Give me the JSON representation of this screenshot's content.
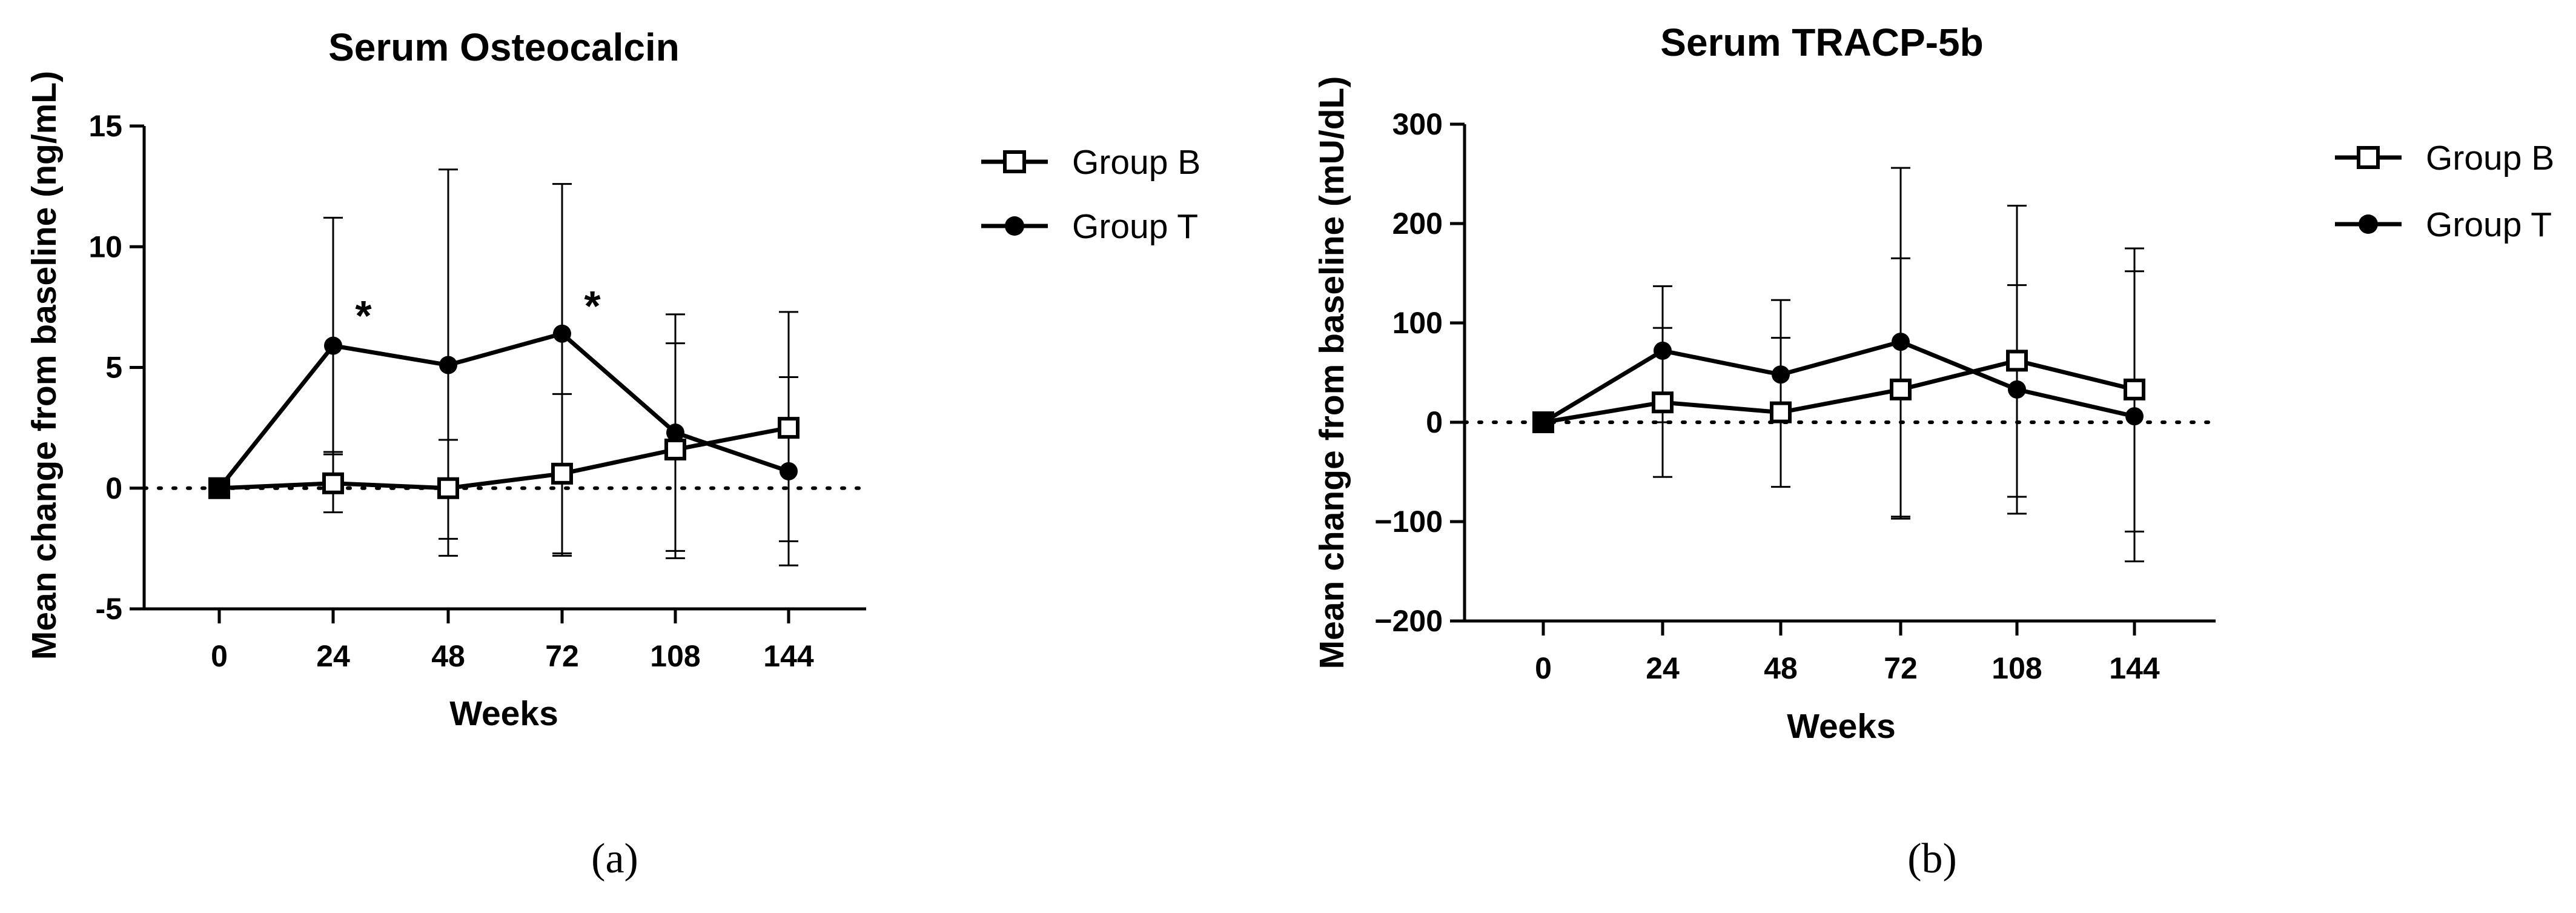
{
  "chart_data": [
    {
      "type": "line",
      "caption": "(a)",
      "title": "Serum Osteocalcin",
      "xlabel": "Weeks",
      "ylabel": "Mean change from baseline (ng/mL)",
      "categories": [
        "0",
        "24",
        "48",
        "72",
        "108",
        "144"
      ],
      "ylim": [
        -5,
        15
      ],
      "yticks": [
        "-5",
        "0",
        "5",
        "10",
        "15"
      ],
      "reference_line": 0,
      "legend_position": "right",
      "series": [
        {
          "name": "Group B",
          "marker": "open-square",
          "values": [
            0,
            0.2,
            0.0,
            0.6,
            1.6,
            2.5
          ],
          "error_upper": [
            0,
            1.5,
            2.0,
            3.9,
            6.0,
            7.3
          ],
          "error_lower": [
            0,
            -1.0,
            -2.1,
            -2.7,
            -2.6,
            -2.2
          ]
        },
        {
          "name": "Group T",
          "marker": "filled-circle",
          "values": [
            0,
            5.9,
            5.1,
            6.4,
            2.3,
            0.7
          ],
          "error_upper": [
            0,
            11.2,
            13.2,
            12.6,
            7.2,
            4.6
          ],
          "error_lower": [
            0,
            1.4,
            -2.8,
            -2.8,
            -2.9,
            -3.2
          ]
        }
      ],
      "annotations": [
        {
          "text": "*",
          "category": "24",
          "y": 6.8
        },
        {
          "text": "*",
          "category": "72",
          "y": 7.2
        }
      ]
    },
    {
      "type": "line",
      "caption": "(b)",
      "title": "Serum TRACP-5b",
      "xlabel": "Weeks",
      "ylabel": "Mean change from baseline (mU/dL)",
      "categories": [
        "0",
        "24",
        "48",
        "72",
        "108",
        "144"
      ],
      "ylim": [
        -200,
        300
      ],
      "yticks": [
        "−200",
        "−100",
        "0",
        "100",
        "200",
        "300"
      ],
      "ytick_values": [
        -200,
        -100,
        0,
        100,
        200,
        300
      ],
      "reference_line": 0,
      "legend_position": "right",
      "series": [
        {
          "name": "Group B",
          "marker": "open-square",
          "values": [
            0,
            20,
            10,
            33,
            62,
            33
          ],
          "error_upper": [
            0,
            95,
            85,
            165,
            138,
            175
          ],
          "error_lower": [
            0,
            -55,
            -65,
            -97,
            -75,
            -110
          ]
        },
        {
          "name": "Group T",
          "marker": "filled-circle",
          "values": [
            0,
            72,
            48,
            81,
            33,
            6
          ],
          "error_upper": [
            0,
            137,
            123,
            256,
            218,
            152
          ],
          "error_lower": [
            0,
            0,
            0,
            -95,
            -92,
            -140
          ]
        }
      ],
      "annotations": []
    }
  ]
}
